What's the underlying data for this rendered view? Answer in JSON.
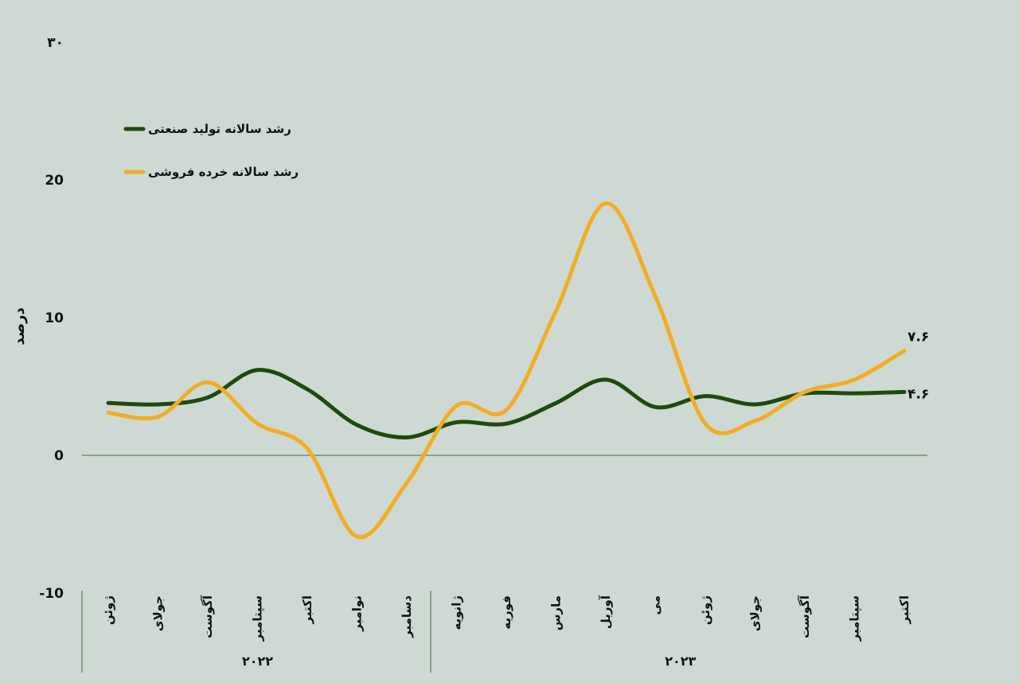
{
  "chart_data": {
    "type": "line",
    "ylabel": "درصد",
    "ylim": [
      -10,
      30
    ],
    "yticks": [
      {
        "value": 30,
        "label": "۳۰"
      },
      {
        "value": 20,
        "label": "20"
      },
      {
        "value": 10,
        "label": "10"
      },
      {
        "value": 0,
        "label": "0"
      },
      {
        "value": -10,
        "label": "-10"
      }
    ],
    "categories": [
      "ژوئن",
      "جولای",
      "آگوست",
      "سپتامبر",
      "اکتبر",
      "نوامبر",
      "دسامبر",
      "ژانویه",
      "فوریه",
      "مارس",
      "آوریل",
      "می",
      "ژوئن",
      "جولای",
      "آگوست",
      "سپتامبر",
      "اکتبر"
    ],
    "year_groups": [
      {
        "label": "۲۰۲۲",
        "start": 0,
        "end": 6
      },
      {
        "label": "۲۰۲۳",
        "start": 7,
        "end": 16
      }
    ],
    "series": [
      {
        "name": "رشد سالانه تولید صنعتی",
        "color": "#1e4a0e",
        "values": [
          3.8,
          3.7,
          4.2,
          6.2,
          4.8,
          2.2,
          1.3,
          2.4,
          2.3,
          3.8,
          5.5,
          3.5,
          4.3,
          3.7,
          4.5,
          4.5,
          4.6
        ],
        "end_label": "۴.۶"
      },
      {
        "name": "رشد سالانه خرده فروشی",
        "color": "#f0ae24",
        "values": [
          3.1,
          2.8,
          5.3,
          2.3,
          0.5,
          -5.9,
          -2.0,
          3.6,
          3.3,
          10.5,
          18.3,
          11.5,
          2.3,
          2.5,
          4.6,
          5.5,
          7.6
        ],
        "end_label": "۷.۶"
      }
    ],
    "legend": "top-left",
    "grid": false
  }
}
